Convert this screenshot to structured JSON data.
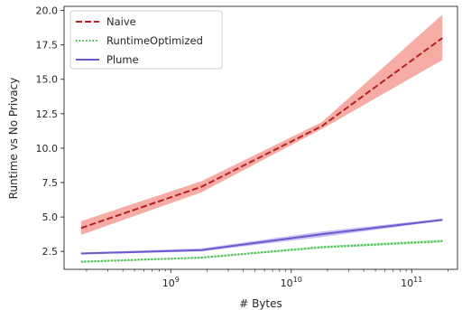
{
  "chart_data": {
    "type": "line",
    "xlabel": "# Bytes",
    "ylabel": "Runtime vs No Privacy",
    "x_scale": "log",
    "x": [
      180000000,
      1800000000,
      18000000000,
      180000000000
    ],
    "xlim": [
      130000000,
      240000000000
    ],
    "ylim": [
      1.2,
      20.3
    ],
    "x_ticks": [
      1000000000,
      10000000000,
      100000000000
    ],
    "x_tick_labels": [
      {
        "base": "10",
        "exp": "9"
      },
      {
        "base": "10",
        "exp": "10"
      },
      {
        "base": "10",
        "exp": "11"
      }
    ],
    "y_ticks": [
      2.5,
      5.0,
      7.5,
      10.0,
      12.5,
      15.0,
      17.5,
      20.0
    ],
    "y_tick_labels": [
      "2.5",
      "5.0",
      "7.5",
      "10.0",
      "12.5",
      "15.0",
      "17.5",
      "20.0"
    ],
    "grid": false,
    "legend_position": "top-left",
    "series": [
      {
        "name": "Naive",
        "values": [
          4.2,
          7.2,
          11.6,
          18.0
        ],
        "lower": [
          3.7,
          6.8,
          11.4,
          16.4
        ],
        "upper": [
          4.7,
          7.6,
          11.9,
          19.7
        ],
        "color": "#b22222",
        "band_color": "#f4978e",
        "style": "dashed"
      },
      {
        "name": "RuntimeOptimized",
        "values": [
          1.75,
          2.05,
          2.8,
          3.25
        ],
        "lower": [
          1.68,
          1.98,
          2.72,
          3.15
        ],
        "upper": [
          1.82,
          2.12,
          2.9,
          3.35
        ],
        "color": "#3cb043",
        "band_color": "#9ee6a0",
        "style": "dotted"
      },
      {
        "name": "Plume",
        "values": [
          2.35,
          2.6,
          3.75,
          4.8
        ],
        "lower": [
          2.28,
          2.5,
          3.55,
          4.72
        ],
        "upper": [
          2.42,
          2.72,
          3.95,
          4.88
        ],
        "color": "#6a5acd",
        "band_color": "#b9aef0",
        "style": "solid"
      }
    ]
  }
}
